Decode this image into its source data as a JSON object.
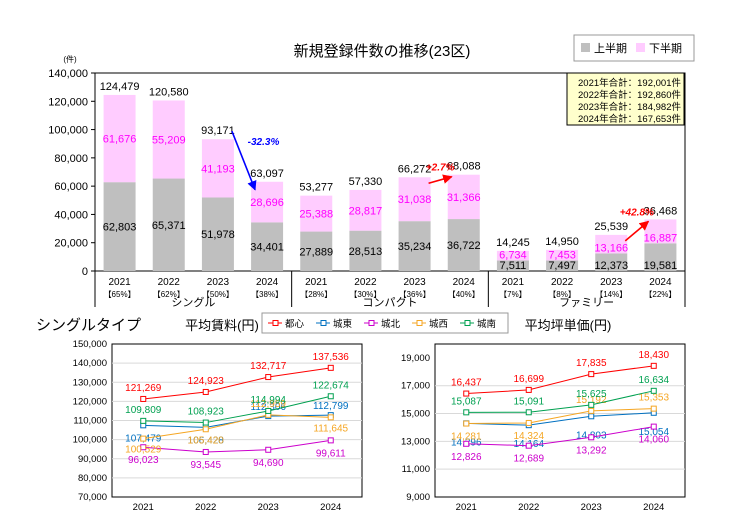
{
  "chart_data": [
    {
      "type": "bar",
      "title": "新規登録件数の推移(23区)",
      "unit": "(件)",
      "ylim": [
        0,
        140000
      ],
      "yticks": [
        "0",
        "20,000",
        "40,000",
        "60,000",
        "80,000",
        "100,000",
        "120,000",
        "140,000"
      ],
      "legend": {
        "placement": "top-right",
        "first_label": "上半期",
        "second_label": "下半期"
      },
      "colors": {
        "first": "#bfbfbf",
        "second": "#ffccff",
        "second_text": "#ff00ff",
        "arrow_down": "#0000ff",
        "arrow_up": "#ff0000"
      },
      "groups": [
        {
          "name": "シングル",
          "bars": [
            {
              "year": "2021",
              "share": "【65%】",
              "first": 62803,
              "second": 61676,
              "total": 124479
            },
            {
              "year": "2022",
              "share": "【62%】",
              "first": 65371,
              "second": 55209,
              "total": 120580
            },
            {
              "year": "2023",
              "share": "【50%】",
              "first": 51978,
              "second": 41193,
              "total": 93171
            },
            {
              "year": "2024",
              "share": "【38%】",
              "first": 34401,
              "second": 28696,
              "total": 63097
            }
          ]
        },
        {
          "name": "コンパクト",
          "bars": [
            {
              "year": "2021",
              "share": "【28%】",
              "first": 27889,
              "second": 25388,
              "total": 53277
            },
            {
              "year": "2022",
              "share": "【30%】",
              "first": 28513,
              "second": 28817,
              "total": 57330
            },
            {
              "year": "2023",
              "share": "【36%】",
              "first": 35234,
              "second": 31038,
              "total": 66272
            },
            {
              "year": "2024",
              "share": "【40%】",
              "first": 36722,
              "second": 31366,
              "total": 68088
            }
          ]
        },
        {
          "name": "ファミリー",
          "bars": [
            {
              "year": "2021",
              "share": "【7%】",
              "first": 7511,
              "second": 6734,
              "total": 14245
            },
            {
              "year": "2022",
              "share": "【8%】",
              "first": 7497,
              "second": 7453,
              "total": 14950
            },
            {
              "year": "2023",
              "share": "【14%】",
              "first": 12373,
              "second": 13166,
              "total": 25539
            },
            {
              "year": "2024",
              "share": "【22%】",
              "first": 19581,
              "second": 16887,
              "total": 36468
            }
          ]
        }
      ],
      "annotations": [
        {
          "text": "-32.3%",
          "group": 0,
          "from": 2,
          "to": 3,
          "dir": "down"
        },
        {
          "text": "+2.7%",
          "group": 1,
          "from": 2,
          "to": 3,
          "dir": "up"
        },
        {
          "text": "+42.8%",
          "group": 2,
          "from": 2,
          "to": 3,
          "dir": "up"
        }
      ],
      "totals_box": [
        "2021年合計：192,001件",
        "2022年合計：192,860件",
        "2023年合計：184,982件",
        "2024年合計：167,653件"
      ]
    },
    {
      "type": "line",
      "title": "平均賃料(円)",
      "ylim": [
        70000,
        150000
      ],
      "yticks": [
        "70,000",
        "80,000",
        "90,000",
        "100,000",
        "110,000",
        "120,000",
        "130,000",
        "140,000",
        "150,000"
      ],
      "x": [
        "2021",
        "2022",
        "2023",
        "2024"
      ],
      "series": [
        {
          "name": "都心",
          "color": "#ff0000",
          "values": [
            121269,
            124923,
            132717,
            137536
          ],
          "labels": [
            "121,269",
            "124,923",
            "132,717",
            "137,536"
          ]
        },
        {
          "name": "城東",
          "color": "#0070c0",
          "values": [
            107479,
            106428,
            112306,
            112799
          ],
          "labels": [
            "107,479",
            "106,428",
            "112,306",
            "112,799"
          ]
        },
        {
          "name": "城北",
          "color": "#cc00cc",
          "values": [
            96023,
            93545,
            94690,
            99611
          ],
          "labels": [
            "96,023",
            "93,545",
            "94,690",
            "99,611"
          ]
        },
        {
          "name": "城西",
          "color": "#f5a623",
          "values": [
            100529,
            105420,
            112959,
            111645
          ],
          "labels": [
            "100,529",
            "105,420",
            "112,959",
            "111,645"
          ]
        },
        {
          "name": "城南",
          "color": "#00a050",
          "values": [
            109809,
            108923,
            114994,
            122674
          ],
          "labels": [
            "109,809",
            "108,923",
            "114,994",
            "122,674"
          ]
        }
      ]
    },
    {
      "type": "line",
      "title": "平均坪単価(円)",
      "ylim": [
        9000,
        20000
      ],
      "yticks": [
        "9,000",
        "11,000",
        "13,000",
        "15,000",
        "17,000",
        "19,000"
      ],
      "x": [
        "2021",
        "2022",
        "2023",
        "2024"
      ],
      "series": [
        {
          "name": "都心",
          "color": "#ff0000",
          "values": [
            16437,
            16699,
            17835,
            18430
          ],
          "labels": [
            "16,437",
            "16,699",
            "17,835",
            "18,430"
          ]
        },
        {
          "name": "城東",
          "color": "#0070c0",
          "values": [
            14296,
            14164,
            14803,
            15054
          ],
          "labels": [
            "14,296",
            "14,164",
            "14,803",
            "15,054"
          ]
        },
        {
          "name": "城北",
          "color": "#cc00cc",
          "values": [
            12826,
            12689,
            13292,
            14060
          ],
          "labels": [
            "12,826",
            "12,689",
            "13,292",
            "14,060"
          ]
        },
        {
          "name": "城西",
          "color": "#f5a623",
          "values": [
            14281,
            14324,
            15192,
            15353
          ],
          "labels": [
            "14,281",
            "14,324",
            "15,192",
            "15,353"
          ]
        },
        {
          "name": "城南",
          "color": "#00a050",
          "values": [
            15087,
            15091,
            15625,
            16634
          ],
          "labels": [
            "15,087",
            "15,091",
            "15,625",
            "16,634"
          ]
        }
      ]
    }
  ],
  "section_title": "シングルタイプ"
}
